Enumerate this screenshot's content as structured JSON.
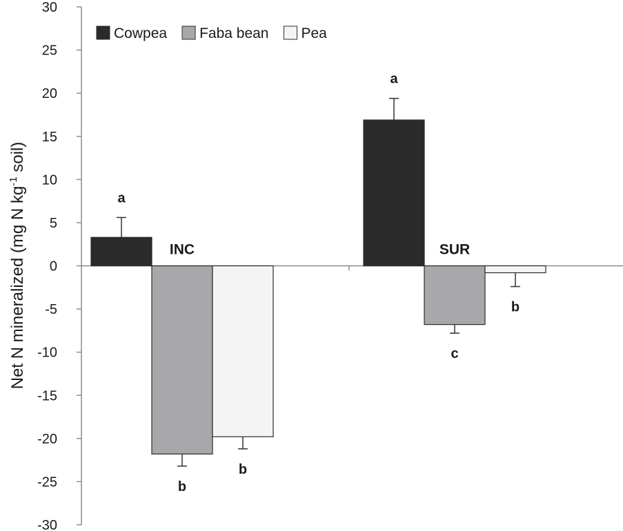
{
  "chart_data": {
    "type": "bar",
    "title": "",
    "xlabel": "",
    "ylabel": "Net N mineralized (mg N kg",
    "ylabel_sup": "-1",
    "ylabel_end": " soil)",
    "ylim": [
      -30,
      30
    ],
    "yticks": [
      30,
      25,
      20,
      15,
      10,
      5,
      0,
      -5,
      -10,
      -15,
      -20,
      -25,
      -30
    ],
    "categories": [
      "INC",
      "SUR"
    ],
    "series": [
      {
        "name": "Cowpea",
        "color": "#2b2b2b",
        "values": [
          3.3,
          16.9
        ],
        "errors": [
          2.3,
          2.5
        ],
        "letters": [
          "a",
          "a"
        ]
      },
      {
        "name": "Faba bean",
        "color": "#a8a8ac",
        "values": [
          -21.8,
          -6.8
        ],
        "errors": [
          1.4,
          1.0
        ],
        "letters": [
          "b",
          "c"
        ]
      },
      {
        "name": "Pea",
        "color": "#f4f4f4",
        "values": [
          -19.8,
          -0.8
        ],
        "errors": [
          1.4,
          1.6
        ],
        "letters": [
          "b",
          "b"
        ]
      }
    ],
    "legend_position": "top-left",
    "grid": false
  }
}
